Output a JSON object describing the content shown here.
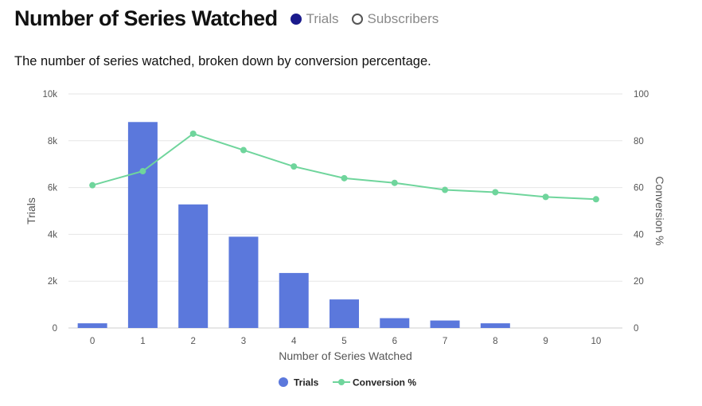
{
  "header": {
    "title": "Number of Series Watched",
    "toggle_trials_label": "Trials",
    "toggle_subscribers_label": "Subscribers"
  },
  "subtitle": "The number of series watched, broken down by conversion percentage.",
  "colors": {
    "bar": "#5b78dc",
    "line": "#6fd59c",
    "trials_toggle": "#1a1a8c",
    "grid": "#e6e6e6"
  },
  "chart_data": {
    "type": "bar",
    "categories": [
      "0",
      "1",
      "2",
      "3",
      "4",
      "5",
      "6",
      "7",
      "8",
      "9",
      "10"
    ],
    "series": [
      {
        "name": "Trials",
        "type": "bar",
        "axis": "left",
        "values": [
          200,
          8800,
          5280,
          3900,
          2350,
          1220,
          420,
          320,
          200,
          0,
          0
        ]
      },
      {
        "name": "Conversion %",
        "type": "line",
        "axis": "right",
        "values": [
          61,
          67,
          83,
          76,
          69,
          64,
          62,
          59,
          58,
          56,
          55
        ]
      }
    ],
    "xlabel": "Number of Series Watched",
    "ylabel": "Trials",
    "y2label": "Conversion %",
    "ylim": [
      0,
      10000
    ],
    "y2lim": [
      0,
      100
    ],
    "yticks": [
      "0",
      "2k",
      "4k",
      "6k",
      "8k",
      "10k"
    ],
    "y2ticks": [
      "0",
      "20",
      "40",
      "60",
      "80",
      "100"
    ],
    "legend": [
      "Trials",
      "Conversion %"
    ],
    "legend_position": "bottom-center"
  }
}
